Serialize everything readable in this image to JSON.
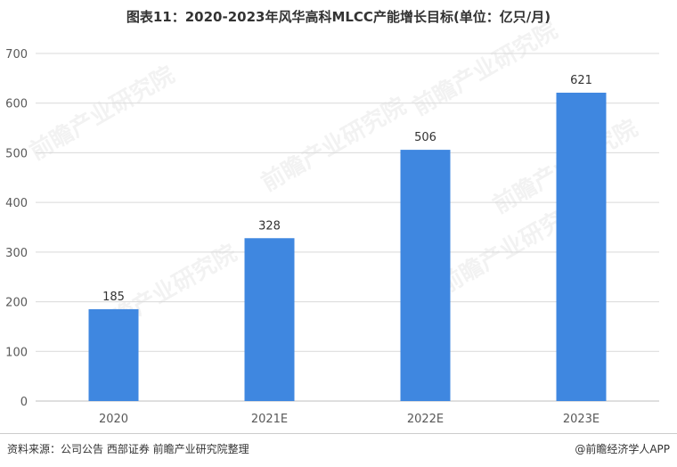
{
  "title": "图表11：2020-2023年风华高科MLCC产能增长目标(单位：亿只/月)",
  "source": "资料来源：公司公告 西部证券 前瞻产业研究院整理",
  "brand": "@前瞻经济学人APP",
  "watermark": "前瞻产业研究院",
  "colors": {
    "bar": "#3F87E0",
    "grid": "#d9d9d9",
    "text": "#333333",
    "axis_text": "#595959"
  },
  "chart_data": {
    "type": "bar",
    "title": "图表11：2020-2023年风华高科MLCC产能增长目标(单位：亿只/月)",
    "categories": [
      "2020",
      "2021E",
      "2022E",
      "2023E"
    ],
    "values": [
      185,
      328,
      506,
      621
    ],
    "data_labels": [
      "185",
      "328",
      "506",
      "621"
    ],
    "xlabel": "",
    "ylabel": "",
    "ylim": [
      0,
      700
    ],
    "yticks": [
      0,
      100,
      200,
      300,
      400,
      500,
      600,
      700
    ],
    "grid": true,
    "legend": "none"
  }
}
